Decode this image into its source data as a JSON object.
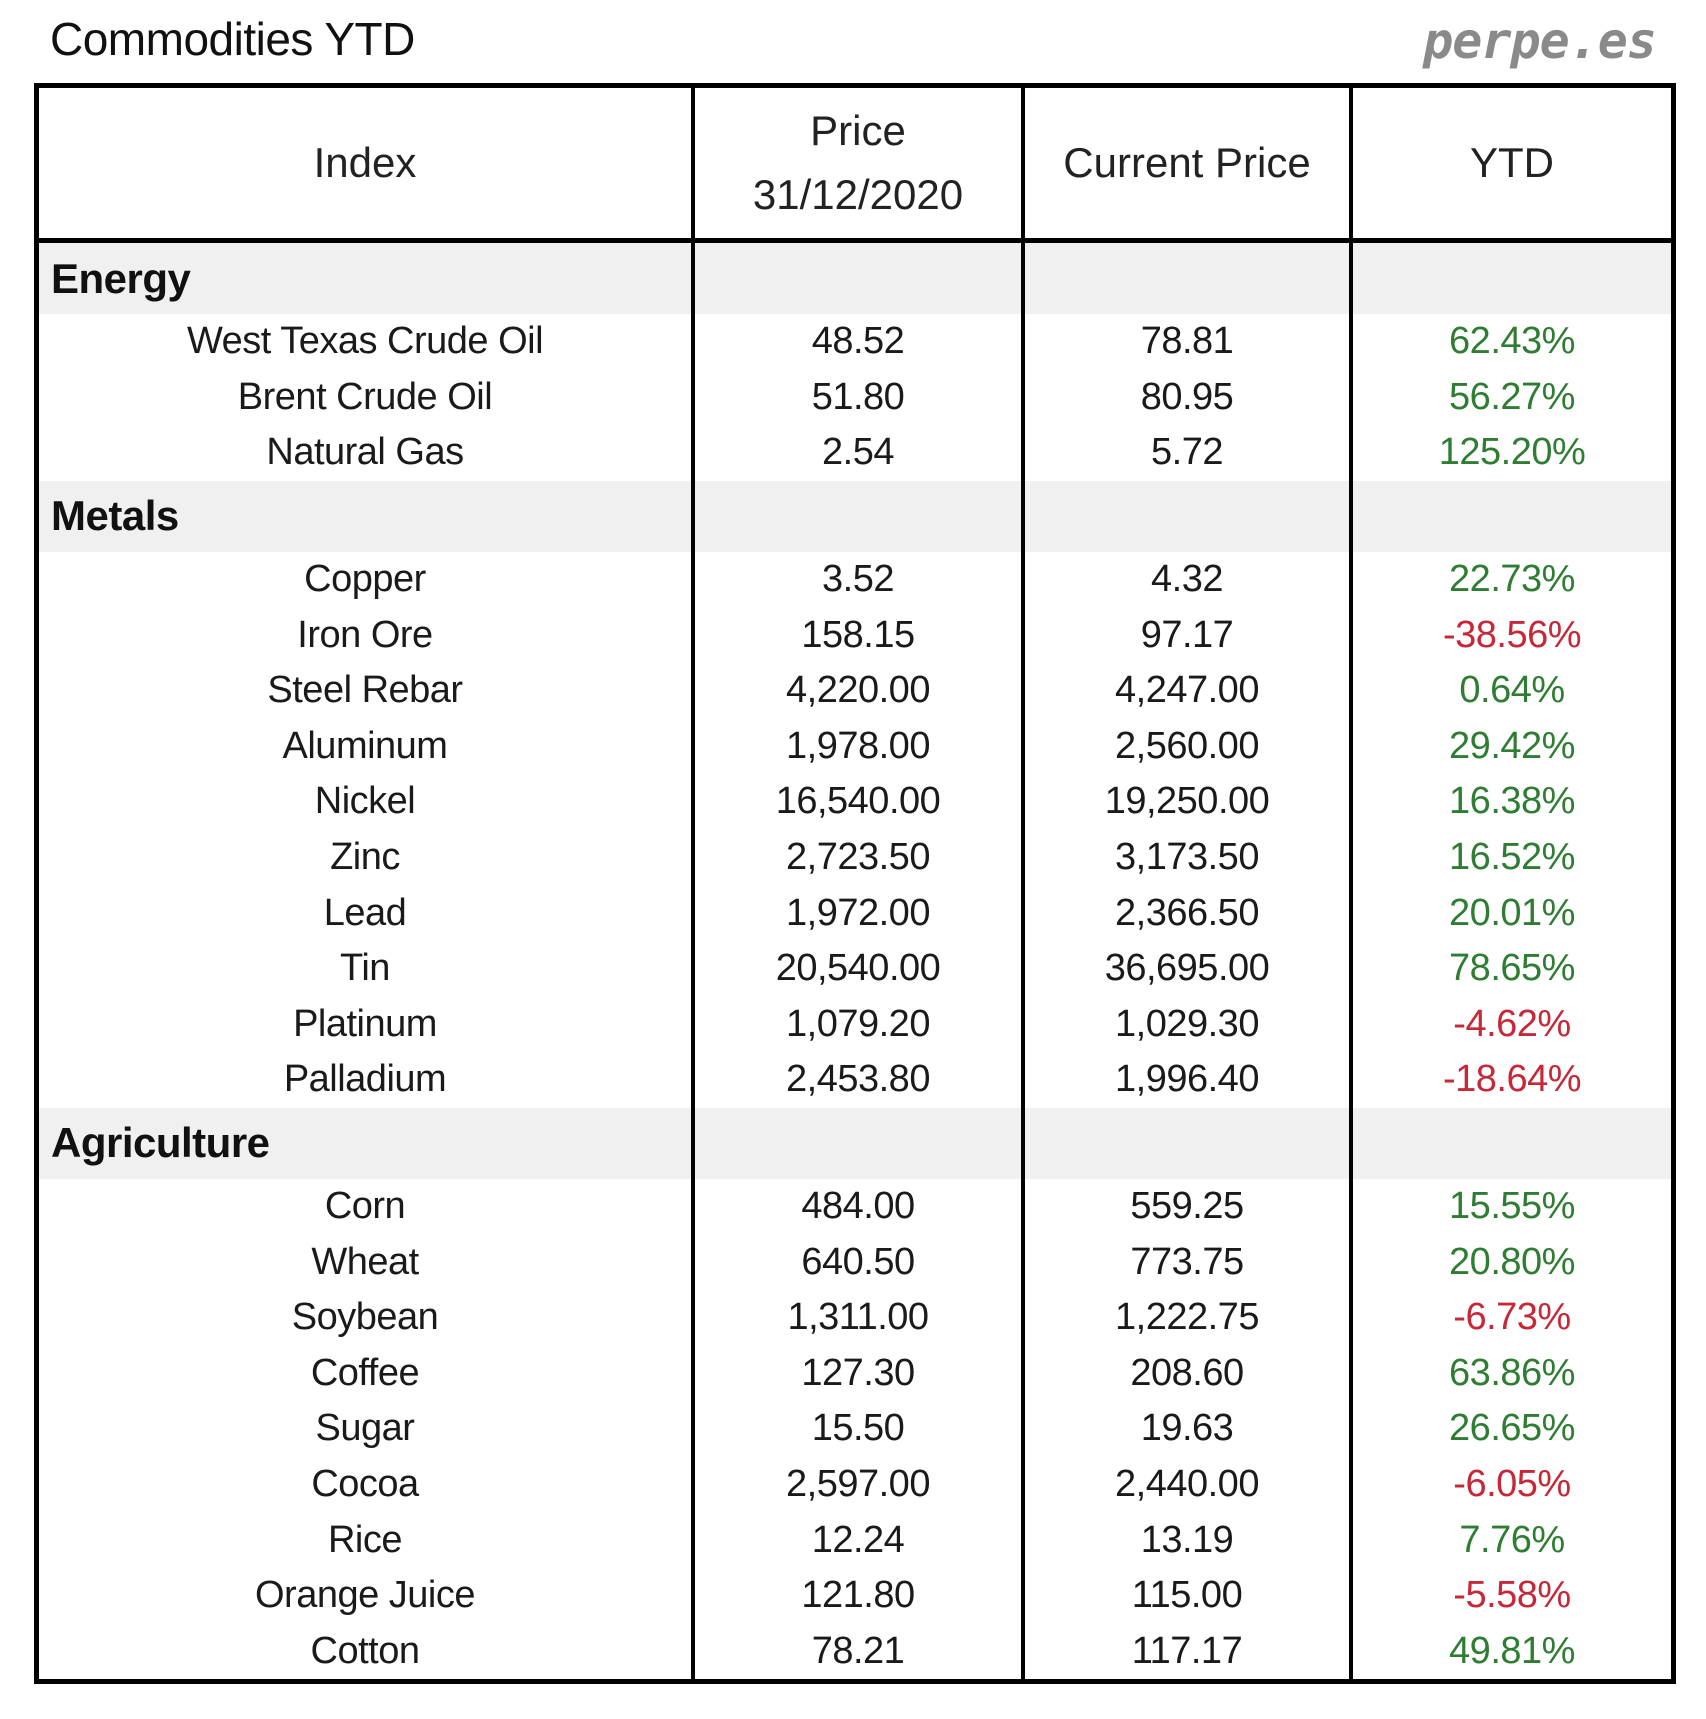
{
  "header": {
    "title": "Commodities YTD",
    "brand": "perpe.es"
  },
  "table": {
    "columns": [
      "Index",
      "Price 31/12/2020",
      "Current Price",
      "YTD"
    ],
    "column_lines": {
      "price_line1": "Price",
      "price_line2": "31/12/2020"
    },
    "colors": {
      "positive": "#2e7d32",
      "negative": "#c62838",
      "section_bg": "#f0f0f0"
    },
    "sections": [
      {
        "name": "Energy",
        "rows": [
          {
            "index": "West Texas Crude Oil",
            "price_2020": "48.52",
            "current": "78.81",
            "ytd": "62.43%",
            "trend": "pos"
          },
          {
            "index": "Brent Crude Oil",
            "price_2020": "51.80",
            "current": "80.95",
            "ytd": "56.27%",
            "trend": "pos"
          },
          {
            "index": "Natural Gas",
            "price_2020": "2.54",
            "current": "5.72",
            "ytd": "125.20%",
            "trend": "pos"
          }
        ]
      },
      {
        "name": "Metals",
        "rows": [
          {
            "index": "Copper",
            "price_2020": "3.52",
            "current": "4.32",
            "ytd": "22.73%",
            "trend": "pos"
          },
          {
            "index": "Iron Ore",
            "price_2020": "158.15",
            "current": "97.17",
            "ytd": "-38.56%",
            "trend": "neg"
          },
          {
            "index": "Steel Rebar",
            "price_2020": "4,220.00",
            "current": "4,247.00",
            "ytd": "0.64%",
            "trend": "pos"
          },
          {
            "index": "Aluminum",
            "price_2020": "1,978.00",
            "current": "2,560.00",
            "ytd": "29.42%",
            "trend": "pos"
          },
          {
            "index": "Nickel",
            "price_2020": "16,540.00",
            "current": "19,250.00",
            "ytd": "16.38%",
            "trend": "pos"
          },
          {
            "index": "Zinc",
            "price_2020": "2,723.50",
            "current": "3,173.50",
            "ytd": "16.52%",
            "trend": "pos"
          },
          {
            "index": "Lead",
            "price_2020": "1,972.00",
            "current": "2,366.50",
            "ytd": "20.01%",
            "trend": "pos"
          },
          {
            "index": "Tin",
            "price_2020": "20,540.00",
            "current": "36,695.00",
            "ytd": "78.65%",
            "trend": "pos"
          },
          {
            "index": "Platinum",
            "price_2020": "1,079.20",
            "current": "1,029.30",
            "ytd": "-4.62%",
            "trend": "neg"
          },
          {
            "index": "Palladium",
            "price_2020": "2,453.80",
            "current": "1,996.40",
            "ytd": "-18.64%",
            "trend": "neg"
          }
        ]
      },
      {
        "name": "Agriculture",
        "rows": [
          {
            "index": "Corn",
            "price_2020": "484.00",
            "current": "559.25",
            "ytd": "15.55%",
            "trend": "pos"
          },
          {
            "index": "Wheat",
            "price_2020": "640.50",
            "current": "773.75",
            "ytd": "20.80%",
            "trend": "pos"
          },
          {
            "index": "Soybean",
            "price_2020": "1,311.00",
            "current": "1,222.75",
            "ytd": "-6.73%",
            "trend": "neg"
          },
          {
            "index": "Coffee",
            "price_2020": "127.30",
            "current": "208.60",
            "ytd": "63.86%",
            "trend": "pos"
          },
          {
            "index": "Sugar",
            "price_2020": "15.50",
            "current": "19.63",
            "ytd": "26.65%",
            "trend": "pos"
          },
          {
            "index": "Cocoa",
            "price_2020": "2,597.00",
            "current": "2,440.00",
            "ytd": "-6.05%",
            "trend": "neg"
          },
          {
            "index": "Rice",
            "price_2020": "12.24",
            "current": "13.19",
            "ytd": "7.76%",
            "trend": "pos"
          },
          {
            "index": "Orange Juice",
            "price_2020": "121.80",
            "current": "115.00",
            "ytd": "-5.58%",
            "trend": "neg"
          },
          {
            "index": "Cotton",
            "price_2020": "78.21",
            "current": "117.17",
            "ytd": "49.81%",
            "trend": "pos"
          }
        ]
      }
    ]
  }
}
